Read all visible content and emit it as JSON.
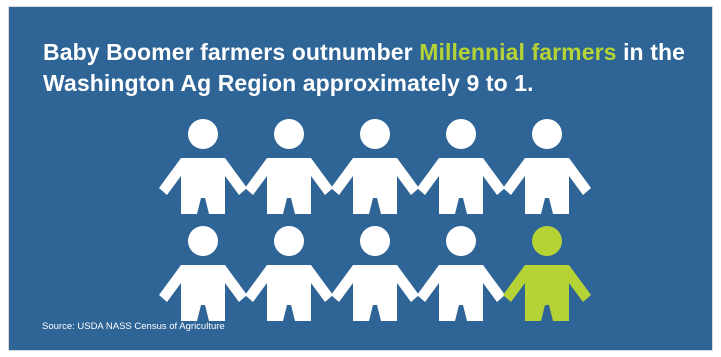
{
  "headline": {
    "before": "Baby Boomer farmers outnumber ",
    "highlight": "Millennial farmers",
    "after": " in the Washington Ag Region approximately 9 to 1."
  },
  "icons": {
    "person": "person-icon",
    "baby_boomer_count": 9,
    "millennial_count": 1
  },
  "source": "Source: USDA NASS Census of Agriculture",
  "colors": {
    "background": "#2e6496",
    "person_white": "#ffffff",
    "highlight_green": "#b5d334"
  }
}
